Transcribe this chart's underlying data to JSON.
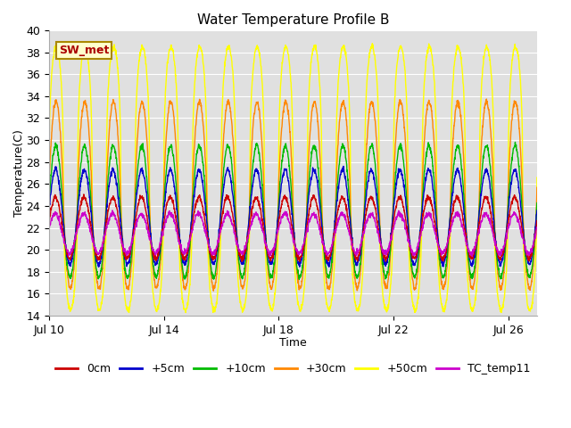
{
  "title": "Water Temperature Profile B",
  "xlabel": "Time",
  "ylabel": "Temperature(C)",
  "ylim": [
    14,
    40
  ],
  "yticks": [
    14,
    16,
    18,
    20,
    22,
    24,
    26,
    28,
    30,
    32,
    34,
    36,
    38,
    40
  ],
  "xtick_labels": [
    "Jul 10",
    "Jul 14",
    "Jul 18",
    "Jul 22",
    "Jul 26"
  ],
  "xtick_positions": [
    0,
    4,
    8,
    12,
    16
  ],
  "series": {
    "0cm": {
      "color": "#cc0000"
    },
    "+5cm": {
      "color": "#0000cc"
    },
    "+10cm": {
      "color": "#00bb00"
    },
    "+30cm": {
      "color": "#ff8800"
    },
    "+50cm": {
      "color": "#ffff00"
    },
    "TC_temp11": {
      "color": "#cc00cc"
    }
  },
  "annotation_text": "SW_met",
  "annotation_color": "#aa0000",
  "annotation_bg": "#ffffcc",
  "annotation_border": "#aa8800",
  "plot_bg": "#e0e0e0",
  "grid_color": "#ffffff",
  "fig_bg": "#ffffff"
}
